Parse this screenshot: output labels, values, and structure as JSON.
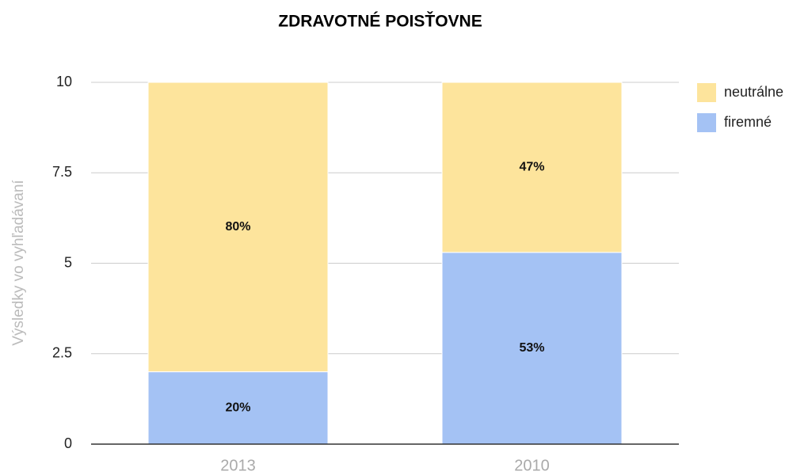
{
  "chart_data": {
    "type": "stacked_bar",
    "title": "ZDRAVOTNÉ POISŤOVNE",
    "y_label": "Výsledky vo vyhľadávaní",
    "categories": [
      "2013",
      "2010"
    ],
    "series": [
      {
        "name": "firemné",
        "color": "#a4c2f4",
        "values": [
          2,
          5.3
        ],
        "value_labels": [
          "20%",
          "53%"
        ]
      },
      {
        "name": "neutrálne",
        "color": "#fde49c",
        "values": [
          8,
          4.7
        ],
        "value_labels": [
          "80%",
          "47%"
        ]
      }
    ],
    "ylim": [
      0,
      10
    ],
    "yticks": [
      0,
      2.5,
      5,
      7.5,
      10
    ],
    "grid": true,
    "legend": "right"
  }
}
